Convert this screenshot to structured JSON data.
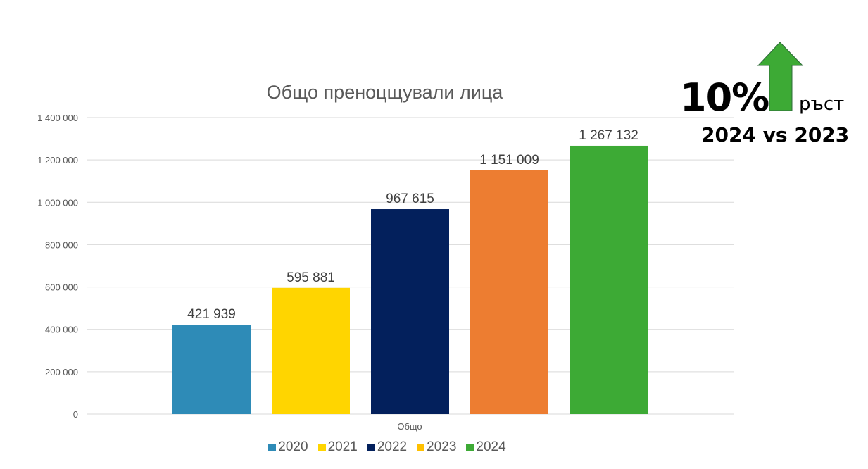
{
  "chart_data": {
    "type": "bar",
    "title": "Общо преноцщували лица",
    "xlabel": "Общо",
    "ylabel": "",
    "ylim": [
      0,
      1400000
    ],
    "yticks": [
      0,
      200000,
      400000,
      600000,
      800000,
      1000000,
      1200000,
      1400000
    ],
    "ytick_labels": [
      "0",
      "200 000",
      "400 000",
      "600 000",
      "800 000",
      "1 000 000",
      "1 200 000",
      "1 400 000"
    ],
    "categories": [
      "Общо"
    ],
    "grid": true,
    "legend_position": "bottom",
    "series": [
      {
        "name": "2020",
        "values": [
          421939
        ],
        "label": "421 939",
        "color": "#2E8BB7",
        "legend_color": "#2E8BB7"
      },
      {
        "name": "2021",
        "values": [
          595881
        ],
        "label": "595 881",
        "color": "#FFD500",
        "legend_color": "#FFD500"
      },
      {
        "name": "2022",
        "values": [
          967615
        ],
        "label": "967 615",
        "color": "#03205C",
        "legend_color": "#03205C"
      },
      {
        "name": "2023",
        "values": [
          1151009
        ],
        "label": "1 151 009",
        "color": "#ED7D31",
        "legend_color": "#FFC000"
      },
      {
        "name": "2024",
        "values": [
          1267132
        ],
        "label": "1 267 132",
        "color": "#3DAA35",
        "legend_color": "#3DAA35"
      }
    ]
  },
  "callout": {
    "percent": "10%",
    "growth_label": "ръст",
    "comparison": "2024 vs 2023",
    "arrow_color": "#3DAA35"
  }
}
